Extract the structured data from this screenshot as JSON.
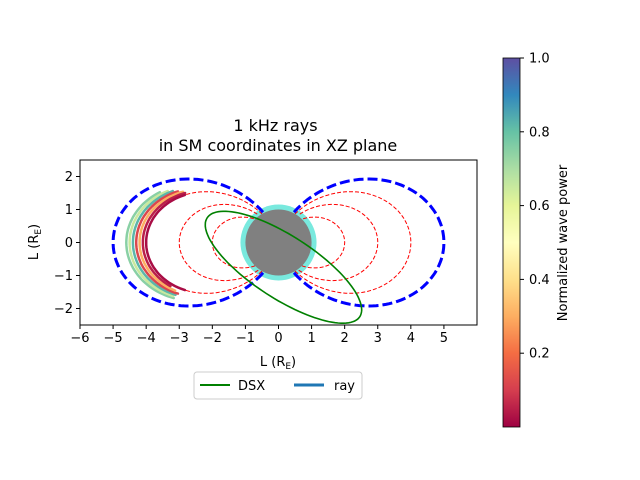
{
  "chart_data": [
    {
      "type": "line",
      "title": "1 kHz rays\nin SM coordinates in XZ plane",
      "xlabel": "L (R",
      "xlabel_sub": "E",
      "ylabel": "L (R",
      "ylabel_sub": "E",
      "xlim": [
        -6,
        6
      ],
      "ylim": [
        -2.5,
        2.5
      ],
      "x_ticks": [
        -6,
        -5,
        -4,
        -3,
        -2,
        -1,
        0,
        1,
        2,
        3,
        4,
        5
      ],
      "y_ticks": [
        -2,
        -1,
        0,
        1,
        2
      ],
      "grid": false,
      "legend_position": "below plot, centered",
      "legend": [
        {
          "label": "DSX",
          "color": "#008000",
          "style": "solid"
        },
        {
          "label": "ray",
          "color": "#1f77b4",
          "style": "solid"
        }
      ],
      "earth": {
        "center": [
          0,
          0
        ],
        "radius": 1.0,
        "color": "#808080"
      },
      "plasmasphere_halo": {
        "center": [
          0,
          0
        ],
        "radius": 1.15,
        "color": "#40e0d0"
      },
      "field_lines_outer": {
        "L": 5,
        "color": "#0000ff",
        "style": "dashed"
      },
      "field_lines_inner": {
        "L": [
          2,
          3,
          4
        ],
        "color": "#ff0000",
        "style": "dashed"
      },
      "dsx_orbit": {
        "color": "#008000",
        "center": [
          0.15,
          -0.75
        ],
        "semi_major": 2.75,
        "semi_minor": 0.95,
        "tilt_deg": -33
      },
      "rays": [
        {
          "L": 4.6,
          "lat_start_deg": 23,
          "lat_end_deg": -28,
          "power": 0.75
        },
        {
          "L": 4.5,
          "lat_start_deg": 25,
          "lat_end_deg": -27,
          "power": 0.65
        },
        {
          "L": 4.4,
          "lat_start_deg": 26,
          "lat_end_deg": -27,
          "power": 0.82
        },
        {
          "L": 4.3,
          "lat_start_deg": 27,
          "lat_end_deg": -27,
          "power": 0.12
        },
        {
          "L": 4.2,
          "lat_start_deg": 28,
          "lat_end_deg": -25,
          "power": 0.3
        },
        {
          "L": 4.1,
          "lat_start_deg": 28,
          "lat_end_deg": -22,
          "power": 0.05
        },
        {
          "L": 4.0,
          "lat_start_deg": 27,
          "lat_end_deg": -27,
          "power": 0.02
        }
      ]
    },
    {
      "type": "colorbar",
      "label": "Normalized wave power",
      "range": [
        0.0,
        1.0
      ],
      "ticks": [
        0.2,
        0.4,
        0.6,
        0.8,
        1.0
      ],
      "colormap": "Spectral"
    }
  ]
}
